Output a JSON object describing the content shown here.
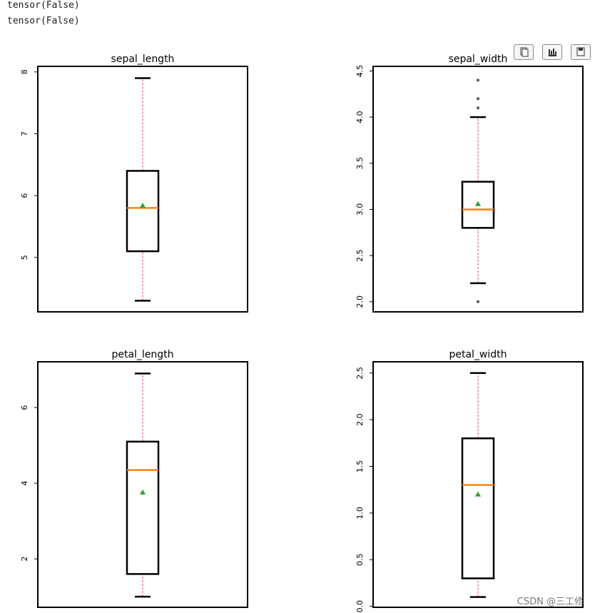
{
  "output": [
    "tensor(False)",
    "tensor(False)"
  ],
  "watermark": "CSDN @三工修",
  "style": {
    "box_color": "#000000",
    "whisker_color": "#e0408a",
    "median_color": "#ff7f0e",
    "mean_color": "#2ca02c",
    "flier_color": "#555555"
  },
  "chart_data": [
    {
      "type": "box",
      "title": "sepal_length",
      "ylim": [
        4.12,
        8.09
      ],
      "yticks": [
        5,
        6,
        7,
        8
      ],
      "stats": {
        "min": 4.3,
        "q1": 5.1,
        "median": 5.8,
        "q3": 6.4,
        "max": 7.9,
        "mean": 5.84
      },
      "fliers": []
    },
    {
      "type": "box",
      "title": "sepal_width",
      "ylim": [
        1.89,
        4.55
      ],
      "yticks": [
        {
          "value": 2,
          "label": "2.0"
        },
        2.5,
        {
          "value": 3,
          "label": "3.0"
        },
        3.5,
        {
          "value": 4,
          "label": "4.0"
        },
        4.5
      ],
      "stats": {
        "min": 2.2,
        "q1": 2.8,
        "median": 3.0,
        "q3": 3.3,
        "max": 4.0,
        "mean": 3.06
      },
      "fliers": [
        4.4,
        4.2,
        4.1,
        2.0
      ]
    },
    {
      "type": "box",
      "title": "petal_length",
      "ylim": [
        0.72,
        7.21
      ],
      "yticks": [
        2,
        4,
        6
      ],
      "stats": {
        "min": 1.0,
        "q1": 1.6,
        "median": 4.35,
        "q3": 5.1,
        "max": 6.9,
        "mean": 3.76
      },
      "fliers": []
    },
    {
      "type": "box",
      "title": "petal_width",
      "ylim": [
        -0.01,
        2.62
      ],
      "yticks": [
        {
          "value": 0,
          "label": "0.0"
        },
        0.5,
        {
          "value": 1,
          "label": "1.0"
        },
        1.5,
        {
          "value": 2,
          "label": "2.0"
        },
        2.5
      ],
      "stats": {
        "min": 0.1,
        "q1": 0.3,
        "median": 1.3,
        "q3": 1.8,
        "max": 2.5,
        "mean": 1.2
      },
      "fliers": []
    }
  ]
}
